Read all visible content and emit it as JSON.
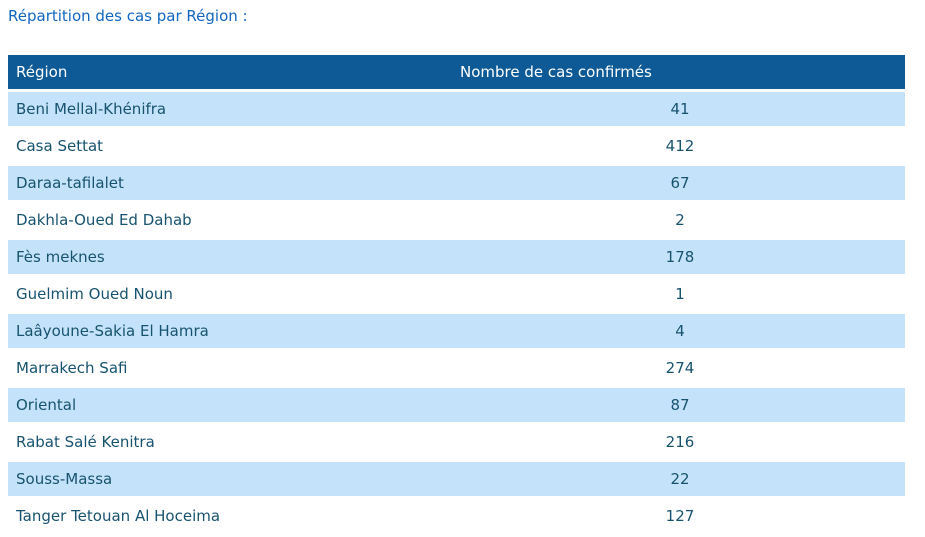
{
  "title": "Répartition des cas par Région :",
  "table": {
    "columns": [
      "Région",
      "Nombre de cas confirmés"
    ],
    "rows": [
      {
        "region": "Beni Mellal-Khénifra",
        "cases": "41"
      },
      {
        "region": "Casa Settat",
        "cases": "412"
      },
      {
        "region": "Daraa-tafilalet",
        "cases": "67"
      },
      {
        "region": "Dakhla-Oued Ed Dahab",
        "cases": "2"
      },
      {
        "region": "Fès meknes",
        "cases": "178"
      },
      {
        "region": "Guelmim Oued Noun",
        "cases": "1"
      },
      {
        "region": "Laâyoune-Sakia El Hamra",
        "cases": "4"
      },
      {
        "region": "Marrakech Safi",
        "cases": "274"
      },
      {
        "region": "Oriental",
        "cases": "87"
      },
      {
        "region": "Rabat Salé Kenitra",
        "cases": "216"
      },
      {
        "region": "Souss-Massa",
        "cases": "22"
      },
      {
        "region": "Tanger Tetouan Al Hoceima",
        "cases": "127"
      }
    ]
  },
  "colors": {
    "title_text": "#1266C2",
    "header_bg": "#0E5A96",
    "header_text": "#FFFFFF",
    "row_alt_bg": "#C4E3FA",
    "cell_text": "#17536F",
    "page_bg": "#FFFFFF"
  }
}
